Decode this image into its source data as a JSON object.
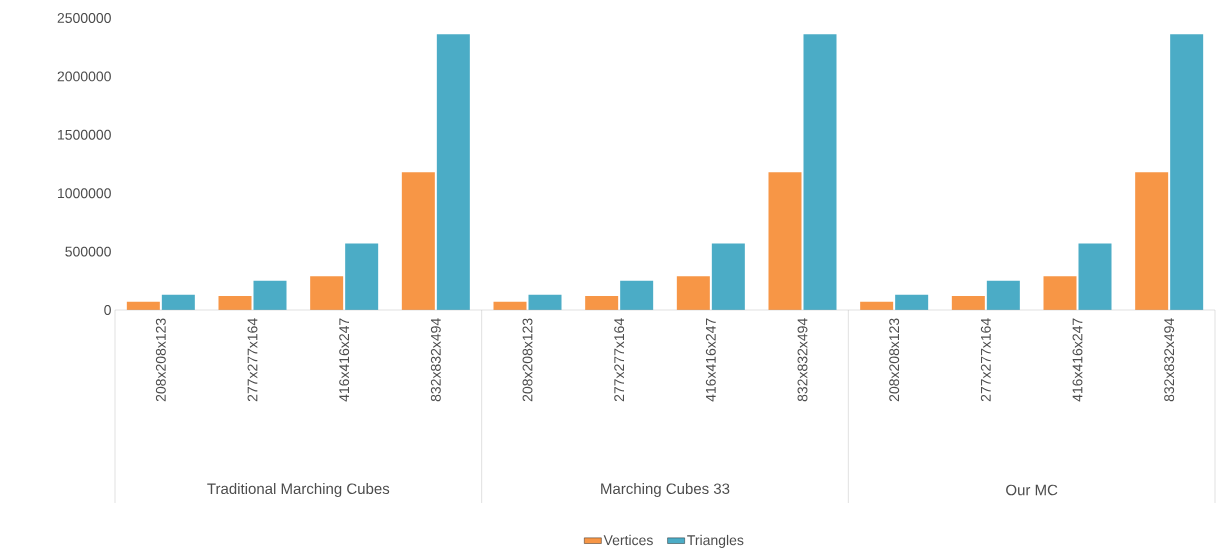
{
  "chart_data": {
    "type": "bar",
    "categories": [
      "208x208x123",
      "277x277x164",
      "416x416x247",
      "832x832x494",
      "208x208x123",
      "277x277x164",
      "416x416x247",
      "832x832x494",
      "208x208x123",
      "277x277x164",
      "416x416x247",
      "832x832x494"
    ],
    "annotations": [
      "Traditional Marching Cubes",
      "Marching Cubes 33",
      "Our MC"
    ],
    "series": [
      {
        "name": "Vertices",
        "color": "#f79646",
        "values": [
          70000,
          120000,
          290000,
          1180000,
          70000,
          120000,
          290000,
          1180000,
          70000,
          120000,
          290000,
          1180000
        ]
      },
      {
        "name": "Triangles",
        "color": "#4bacc6",
        "values": [
          130000,
          250000,
          570000,
          2360000,
          130000,
          250000,
          570000,
          2360000,
          130000,
          250000,
          570000,
          2360000
        ]
      }
    ],
    "ylim": [
      0,
      2500000
    ],
    "yticks": [
      0,
      500000,
      1000000,
      1500000,
      2000000,
      2500000
    ],
    "legend": "bottom",
    "grid": false
  }
}
